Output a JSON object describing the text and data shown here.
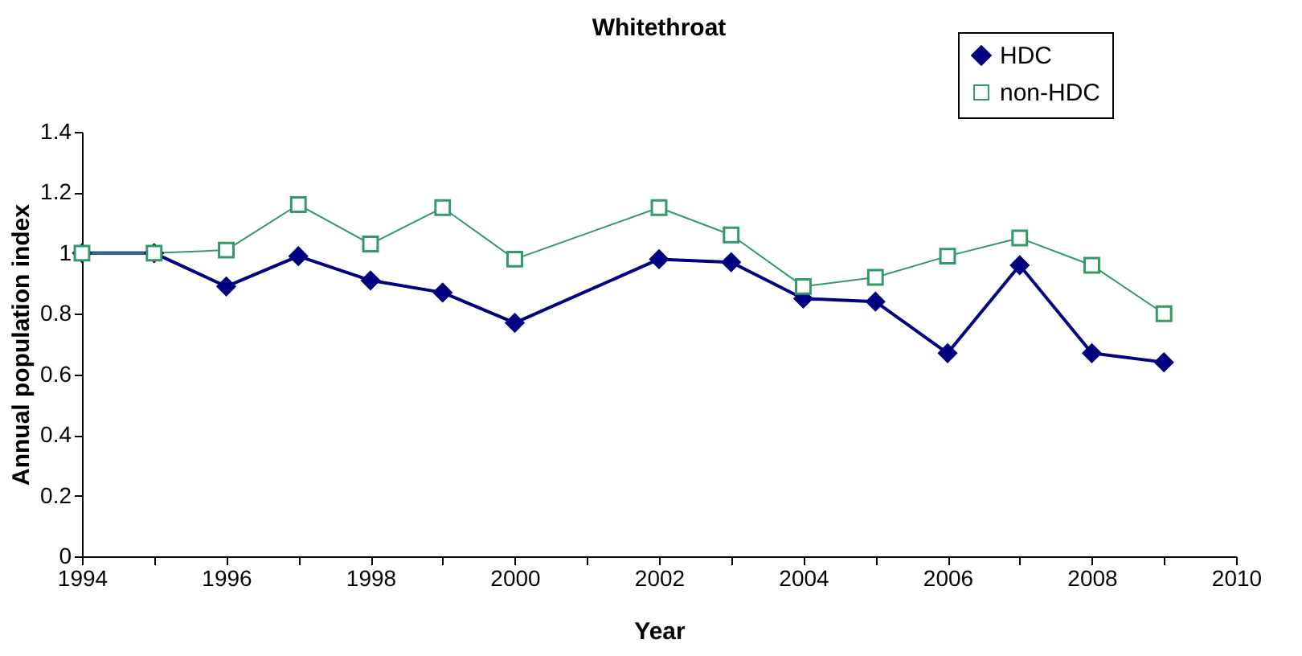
{
  "chart_data": {
    "type": "line",
    "title": "Whitethroat",
    "xlabel": "Year",
    "ylabel": "Annual population index",
    "x": [
      1994,
      1995,
      1996,
      1997,
      1998,
      1999,
      2000,
      2002,
      2003,
      2004,
      2005,
      2006,
      2007,
      2008,
      2009
    ],
    "series": [
      {
        "name": "HDC",
        "color": "#000080",
        "marker": "diamond",
        "values": [
          1.0,
          1.0,
          0.89,
          0.99,
          0.91,
          0.87,
          0.77,
          0.98,
          0.97,
          0.85,
          0.84,
          0.67,
          0.96,
          0.67,
          0.64
        ]
      },
      {
        "name": "non-HDC",
        "color": "#339966",
        "marker": "square",
        "values": [
          1.0,
          1.0,
          1.01,
          1.16,
          1.03,
          1.15,
          0.98,
          1.15,
          1.06,
          0.89,
          0.92,
          0.99,
          1.05,
          0.96,
          0.8
        ]
      }
    ],
    "xlim": [
      1994,
      2010
    ],
    "xticks": [
      1994,
      {
        "value": 1995,
        "label": null
      },
      1996,
      {
        "value": 1997,
        "label": null
      },
      1998,
      {
        "value": 1999,
        "label": null
      },
      2000,
      {
        "value": 2001,
        "label": null
      },
      2002,
      {
        "value": 2003,
        "label": null
      },
      2004,
      {
        "value": 2005,
        "label": null
      },
      2006,
      {
        "value": 2007,
        "label": null
      },
      2008,
      {
        "value": 2009,
        "label": null
      },
      2010
    ],
    "ylim": [
      0,
      1.4
    ],
    "yticks": [
      0,
      0.2,
      0.4,
      0.6,
      0.8,
      1,
      1.2,
      1.4
    ],
    "legend": "top right",
    "grid": false
  }
}
